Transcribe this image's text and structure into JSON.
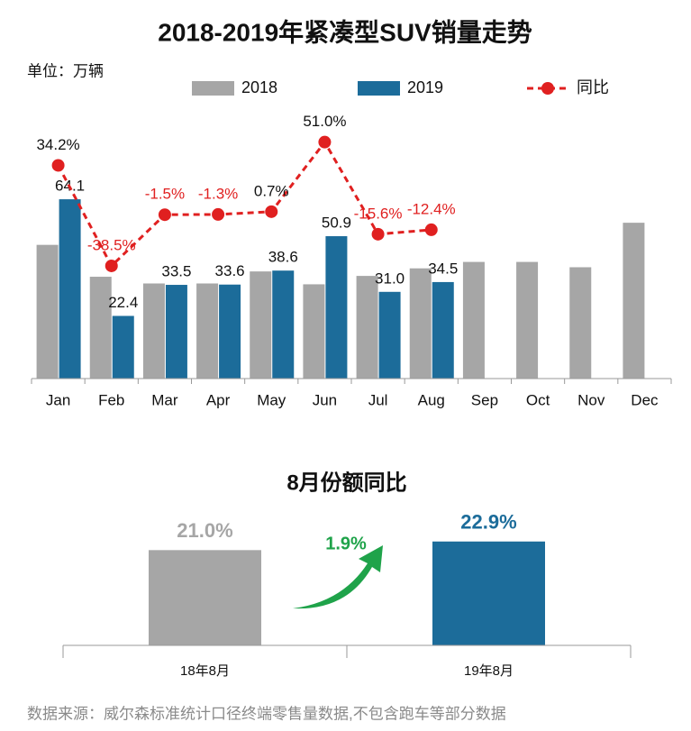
{
  "chart_data": [
    {
      "type": "bar",
      "title": "2018-2019年紧凑型SUV销量走势",
      "unit": "单位：万辆",
      "categories": [
        "Jan",
        "Feb",
        "Mar",
        "Apr",
        "May",
        "Jun",
        "Jul",
        "Aug",
        "Sep",
        "Oct",
        "Nov",
        "Dec"
      ],
      "series": [
        {
          "name": "2018",
          "color": "#a6a6a6",
          "values": [
            47.8,
            36.4,
            34.0,
            34.0,
            38.3,
            33.7,
            36.7,
            39.4,
            41.7,
            41.7,
            39.8,
            55.7
          ]
        },
        {
          "name": "2019",
          "color": "#1c6c9a",
          "values": [
            64.1,
            22.4,
            33.5,
            33.6,
            38.6,
            50.9,
            31.0,
            34.5,
            null,
            null,
            null,
            null
          ],
          "value_labels": [
            "64.1",
            "22.4",
            "33.5",
            "33.6",
            "38.6",
            "50.9",
            "31.0",
            "34.5",
            null,
            null,
            null,
            null
          ]
        },
        {
          "name": "同比",
          "type": "line",
          "axis": "y2",
          "color": "#e02020",
          "values": [
            34.2,
            -38.5,
            -1.5,
            -1.3,
            0.7,
            51.0,
            -15.6,
            -12.4,
            null,
            null,
            null,
            null
          ],
          "value_labels": [
            "34.2%",
            "-38.5%",
            "-1.5%",
            "-1.3%",
            "0.7%",
            "51.0%",
            "-15.6%",
            "-12.4%",
            null,
            null,
            null,
            null
          ]
        }
      ],
      "ylim": [
        0,
        87
      ],
      "y2lim": [
        -120,
        56
      ]
    },
    {
      "type": "bar",
      "title": "8月份额同比",
      "categories": [
        "18年8月",
        "19年8月"
      ],
      "values": [
        21.0,
        22.9
      ],
      "value_labels": [
        "21.0%",
        "22.9%"
      ],
      "colors": [
        "#a6a6a6",
        "#1c6c9a"
      ],
      "annotation": "1.9%",
      "ylim": [
        0,
        31
      ]
    }
  ],
  "source": "数据来源：威尔森标准统计口径终端零售量数据,不包含跑车等部分数据"
}
